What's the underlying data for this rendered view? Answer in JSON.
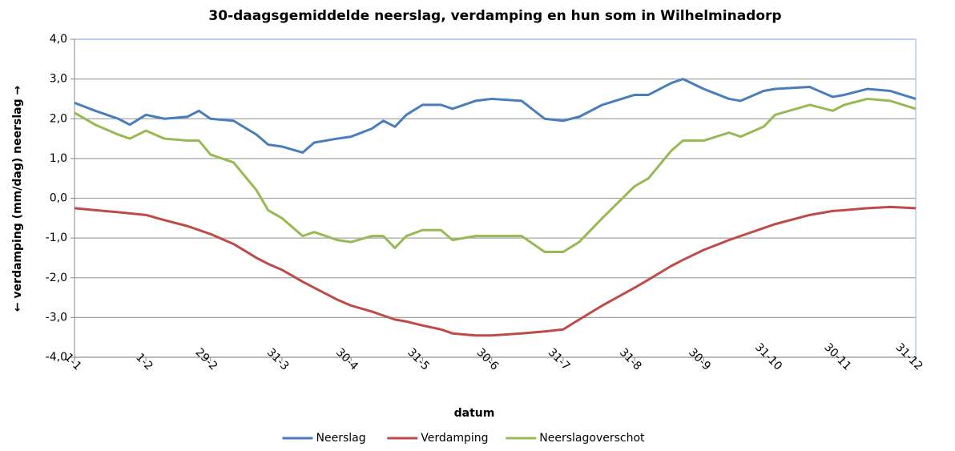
{
  "chart_data": {
    "type": "line",
    "title": "30-daagsgemiddelde neerslag, verdamping en hun som in Wilhelminadorp",
    "x_label": "datum",
    "y_label": "← verdamping (mm/dag) neerslag →",
    "x": [
      1,
      10,
      20,
      25,
      32,
      40,
      50,
      55,
      60,
      70,
      80,
      85,
      91,
      100,
      105,
      115,
      121,
      130,
      135,
      140,
      145,
      152,
      160,
      165,
      175,
      182,
      195,
      205,
      213,
      220,
      230,
      244,
      250,
      260,
      265,
      274,
      285,
      290,
      300,
      305,
      320,
      330,
      335,
      345,
      355,
      366
    ],
    "series": [
      {
        "name": "Neerslag",
        "color": "#4a7ebb",
        "values": [
          2.4,
          2.2,
          2.0,
          1.85,
          2.1,
          2.0,
          2.05,
          2.2,
          2.0,
          1.95,
          1.6,
          1.35,
          1.3,
          1.15,
          1.4,
          1.5,
          1.55,
          1.75,
          1.95,
          1.8,
          2.1,
          2.35,
          2.35,
          2.25,
          2.45,
          2.5,
          2.45,
          2.0,
          1.95,
          2.05,
          2.35,
          2.6,
          2.6,
          2.9,
          3.0,
          2.75,
          2.5,
          2.45,
          2.7,
          2.75,
          2.8,
          2.55,
          2.6,
          2.75,
          2.7,
          2.5
        ]
      },
      {
        "name": "Verdamping",
        "color": "#be4b48",
        "values": [
          -0.25,
          -0.3,
          -0.35,
          -0.38,
          -0.42,
          -0.55,
          -0.7,
          -0.8,
          -0.9,
          -1.15,
          -1.5,
          -1.65,
          -1.8,
          -2.1,
          -2.25,
          -2.55,
          -2.7,
          -2.85,
          -2.95,
          -3.05,
          -3.1,
          -3.2,
          -3.3,
          -3.4,
          -3.45,
          -3.45,
          -3.4,
          -3.35,
          -3.3,
          -3.05,
          -2.7,
          -2.25,
          -2.05,
          -1.7,
          -1.55,
          -1.3,
          -1.05,
          -0.95,
          -0.75,
          -0.65,
          -0.42,
          -0.32,
          -0.3,
          -0.25,
          -0.22,
          -0.25
        ]
      },
      {
        "name": "Neerslagoverschot",
        "color": "#98b954",
        "values": [
          2.15,
          1.85,
          1.6,
          1.5,
          1.7,
          1.5,
          1.45,
          1.45,
          1.1,
          0.9,
          0.2,
          -0.3,
          -0.5,
          -0.95,
          -0.85,
          -1.05,
          -1.1,
          -0.95,
          -0.95,
          -1.25,
          -0.95,
          -0.8,
          -0.8,
          -1.05,
          -0.95,
          -0.95,
          -0.95,
          -1.35,
          -1.35,
          -1.1,
          -0.5,
          0.3,
          0.5,
          1.2,
          1.45,
          1.45,
          1.65,
          1.55,
          1.8,
          2.1,
          2.35,
          2.2,
          2.35,
          2.5,
          2.45,
          2.25
        ]
      }
    ],
    "xlim": [
      1,
      366
    ],
    "xticks": [
      {
        "value": 1,
        "label": "1-1"
      },
      {
        "value": 32,
        "label": "1-2"
      },
      {
        "value": 60,
        "label": "29-2"
      },
      {
        "value": 91,
        "label": "31-3"
      },
      {
        "value": 121,
        "label": "30-4"
      },
      {
        "value": 152,
        "label": "31-5"
      },
      {
        "value": 182,
        "label": "30-6"
      },
      {
        "value": 213,
        "label": "31-7"
      },
      {
        "value": 244,
        "label": "31-8"
      },
      {
        "value": 274,
        "label": "30-9"
      },
      {
        "value": 305,
        "label": "31-10"
      },
      {
        "value": 335,
        "label": "30-11"
      },
      {
        "value": 366,
        "label": "31-12"
      }
    ],
    "ylim": [
      -4,
      4
    ],
    "yticks": [
      {
        "value": 4,
        "label": "4,0"
      },
      {
        "value": 3,
        "label": "3,0"
      },
      {
        "value": 2,
        "label": "2,0"
      },
      {
        "value": 1,
        "label": "1,0"
      },
      {
        "value": 0,
        "label": "0,0"
      },
      {
        "value": -1,
        "label": "-1,0"
      },
      {
        "value": -2,
        "label": "-2,0"
      },
      {
        "value": -3,
        "label": "-3,0"
      },
      {
        "value": -4,
        "label": "-4,0"
      }
    ],
    "grid": true,
    "legend": "bottom"
  }
}
